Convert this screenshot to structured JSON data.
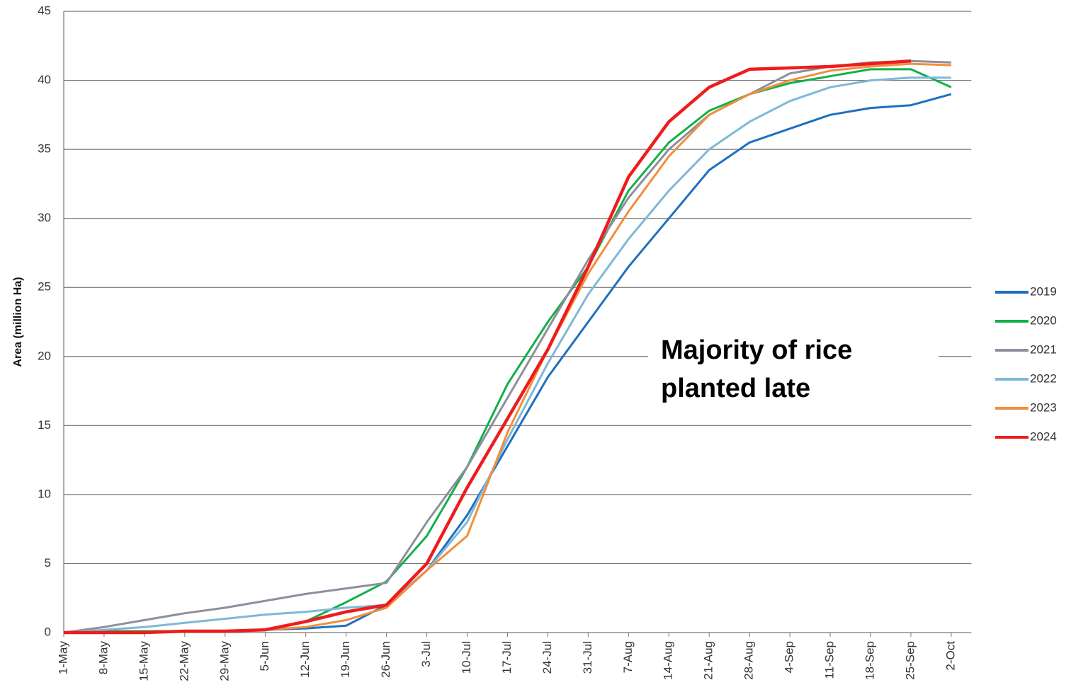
{
  "chart_data": {
    "type": "line",
    "y_label": "Area (million Ha)",
    "annotation": "Majority of rice\nplanted late",
    "categories": [
      "1-May",
      "8-May",
      "15-May",
      "22-May",
      "29-May",
      "5-Jun",
      "12-Jun",
      "19-Jun",
      "26-Jun",
      "3-Jul",
      "10-Jul",
      "17-Jul",
      "24-Jul",
      "31-Jul",
      "7-Aug",
      "14-Aug",
      "21-Aug",
      "28-Aug",
      "4-Sep",
      "11-Sep",
      "18-Sep",
      "25-Sep",
      "2-Oct"
    ],
    "series": [
      {
        "name": "2019",
        "color": "#1f6fc0",
        "values": [
          0,
          0.1,
          0.1,
          0.1,
          0.1,
          0.2,
          0.3,
          0.5,
          2,
          4.5,
          8.5,
          13.5,
          18.5,
          22.5,
          26.5,
          30,
          33.5,
          35.5,
          36.5,
          37.5,
          38,
          38.2,
          39
        ]
      },
      {
        "name": "2020",
        "color": "#12b04a",
        "values": [
          0,
          0.1,
          0.1,
          0.1,
          0.1,
          0.2,
          0.8,
          2.2,
          3.7,
          7,
          12,
          18,
          22.5,
          26.5,
          32,
          35.5,
          37.8,
          39,
          39.8,
          40.3,
          40.8,
          40.8,
          39.5
        ]
      },
      {
        "name": "2021",
        "color": "#8e8e9e",
        "values": [
          0,
          0.4,
          0.9,
          1.4,
          1.8,
          2.3,
          2.8,
          3.2,
          3.6,
          8,
          12,
          17,
          22,
          27,
          31.5,
          35,
          37.5,
          39,
          40.5,
          41,
          41.3,
          41.4,
          41.3
        ]
      },
      {
        "name": "2022",
        "color": "#7fb8d6",
        "values": [
          0,
          0.2,
          0.4,
          0.7,
          1,
          1.3,
          1.5,
          1.8,
          2,
          4.5,
          8,
          14,
          19.5,
          24.5,
          28.5,
          32,
          35,
          37,
          38.5,
          39.5,
          40,
          40.2,
          40.2
        ]
      },
      {
        "name": "2023",
        "color": "#f28e3c",
        "values": [
          0,
          0,
          0,
          0.1,
          0.1,
          0.2,
          0.4,
          0.9,
          1.8,
          4.5,
          7,
          14.5,
          20.5,
          26,
          30.5,
          34.5,
          37.5,
          39,
          40,
          40.7,
          41,
          41.2,
          41.1
        ]
      },
      {
        "name": "2024",
        "color": "#ee1c1c",
        "values": [
          0,
          0,
          0,
          0.1,
          0.1,
          0.2,
          0.8,
          1.5,
          2,
          5,
          10.5,
          15.5,
          20.5,
          26.5,
          33,
          37,
          39.5,
          40.8,
          40.9,
          41,
          41.2,
          41.4,
          null
        ]
      }
    ],
    "ylim": [
      0,
      45
    ],
    "yticks": [
      0,
      5,
      10,
      15,
      20,
      25,
      30,
      35,
      40,
      45
    ],
    "grid": true,
    "legend": "right"
  }
}
